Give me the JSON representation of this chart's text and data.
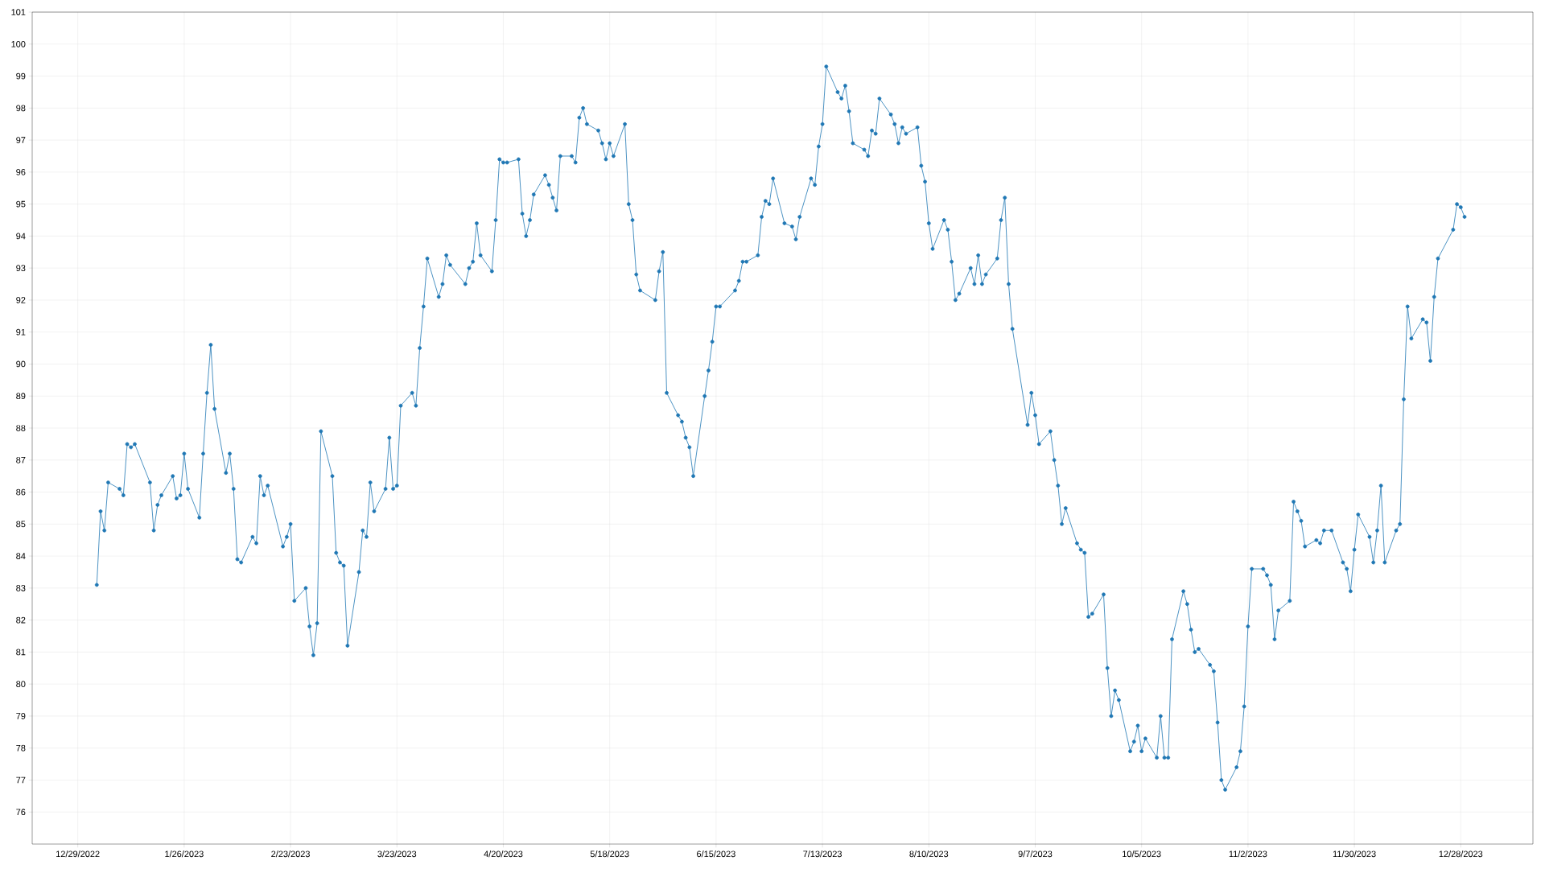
{
  "chart_data": {
    "type": "line",
    "color": "#1f77b4",
    "marker": "circle",
    "line_style": "solid",
    "grid": true,
    "xlim": [
      "2022-12-17",
      "2024-01-16"
    ],
    "ylim": [
      75,
      101
    ],
    "yticks": [
      76,
      77,
      78,
      79,
      80,
      81,
      82,
      83,
      84,
      85,
      86,
      87,
      88,
      89,
      90,
      91,
      92,
      93,
      94,
      95,
      96,
      97,
      98,
      99,
      100,
      101
    ],
    "xticks": [
      {
        "value": "2022-12-29",
        "label": "12/29/2022"
      },
      {
        "value": "2023-01-26",
        "label": "1/26/2023"
      },
      {
        "value": "2023-02-23",
        "label": "2/23/2023"
      },
      {
        "value": "2023-03-23",
        "label": "3/23/2023"
      },
      {
        "value": "2023-04-20",
        "label": "4/20/2023"
      },
      {
        "value": "2023-05-18",
        "label": "5/18/2023"
      },
      {
        "value": "2023-06-15",
        "label": "6/15/2023"
      },
      {
        "value": "2023-07-13",
        "label": "7/13/2023"
      },
      {
        "value": "2023-08-10",
        "label": "8/10/2023"
      },
      {
        "value": "2023-09-07",
        "label": "9/7/2023"
      },
      {
        "value": "2023-10-05",
        "label": "10/5/2023"
      },
      {
        "value": "2023-11-02",
        "label": "11/2/2023"
      },
      {
        "value": "2023-11-30",
        "label": "11/30/2023"
      },
      {
        "value": "2023-12-28",
        "label": "12/28/2023"
      }
    ],
    "x": [
      "2023-01-03",
      "2023-01-04",
      "2023-01-05",
      "2023-01-06",
      "2023-01-09",
      "2023-01-10",
      "2023-01-11",
      "2023-01-12",
      "2023-01-13",
      "2023-01-17",
      "2023-01-18",
      "2023-01-19",
      "2023-01-20",
      "2023-01-23",
      "2023-01-24",
      "2023-01-25",
      "2023-01-26",
      "2023-01-27",
      "2023-01-30",
      "2023-01-31",
      "2023-02-01",
      "2023-02-02",
      "2023-02-03",
      "2023-02-06",
      "2023-02-07",
      "2023-02-08",
      "2023-02-09",
      "2023-02-10",
      "2023-02-13",
      "2023-02-14",
      "2023-02-15",
      "2023-02-16",
      "2023-02-17",
      "2023-02-21",
      "2023-02-22",
      "2023-02-23",
      "2023-02-24",
      "2023-02-27",
      "2023-02-28",
      "2023-03-01",
      "2023-03-02",
      "2023-03-03",
      "2023-03-06",
      "2023-03-07",
      "2023-03-08",
      "2023-03-09",
      "2023-03-10",
      "2023-03-13",
      "2023-03-14",
      "2023-03-15",
      "2023-03-16",
      "2023-03-17",
      "2023-03-20",
      "2023-03-21",
      "2023-03-22",
      "2023-03-23",
      "2023-03-24",
      "2023-03-27",
      "2023-03-28",
      "2023-03-29",
      "2023-03-30",
      "2023-03-31",
      "2023-04-03",
      "2023-04-04",
      "2023-04-05",
      "2023-04-06",
      "2023-04-10",
      "2023-04-11",
      "2023-04-12",
      "2023-04-13",
      "2023-04-14",
      "2023-04-17",
      "2023-04-18",
      "2023-04-19",
      "2023-04-20",
      "2023-04-21",
      "2023-04-24",
      "2023-04-25",
      "2023-04-26",
      "2023-04-27",
      "2023-04-28",
      "2023-05-01",
      "2023-05-02",
      "2023-05-03",
      "2023-05-04",
      "2023-05-05",
      "2023-05-08",
      "2023-05-09",
      "2023-05-10",
      "2023-05-11",
      "2023-05-12",
      "2023-05-15",
      "2023-05-16",
      "2023-05-17",
      "2023-05-18",
      "2023-05-19",
      "2023-05-22",
      "2023-05-23",
      "2023-05-24",
      "2023-05-25",
      "2023-05-26",
      "2023-05-30",
      "2023-05-31",
      "2023-06-01",
      "2023-06-02",
      "2023-06-05",
      "2023-06-06",
      "2023-06-07",
      "2023-06-08",
      "2023-06-09",
      "2023-06-12",
      "2023-06-13",
      "2023-06-14",
      "2023-06-15",
      "2023-06-16",
      "2023-06-20",
      "2023-06-21",
      "2023-06-22",
      "2023-06-23",
      "2023-06-26",
      "2023-06-27",
      "2023-06-28",
      "2023-06-29",
      "2023-06-30",
      "2023-07-03",
      "2023-07-05",
      "2023-07-06",
      "2023-07-07",
      "2023-07-10",
      "2023-07-11",
      "2023-07-12",
      "2023-07-13",
      "2023-07-14",
      "2023-07-17",
      "2023-07-18",
      "2023-07-19",
      "2023-07-20",
      "2023-07-21",
      "2023-07-24",
      "2023-07-25",
      "2023-07-26",
      "2023-07-27",
      "2023-07-28",
      "2023-07-31",
      "2023-08-01",
      "2023-08-02",
      "2023-08-03",
      "2023-08-04",
      "2023-08-07",
      "2023-08-08",
      "2023-08-09",
      "2023-08-10",
      "2023-08-11",
      "2023-08-14",
      "2023-08-15",
      "2023-08-16",
      "2023-08-17",
      "2023-08-18",
      "2023-08-21",
      "2023-08-22",
      "2023-08-23",
      "2023-08-24",
      "2023-08-25",
      "2023-08-28",
      "2023-08-29",
      "2023-08-30",
      "2023-08-31",
      "2023-09-01",
      "2023-09-05",
      "2023-09-06",
      "2023-09-07",
      "2023-09-08",
      "2023-09-11",
      "2023-09-12",
      "2023-09-13",
      "2023-09-14",
      "2023-09-15",
      "2023-09-18",
      "2023-09-19",
      "2023-09-20",
      "2023-09-21",
      "2023-09-22",
      "2023-09-25",
      "2023-09-26",
      "2023-09-27",
      "2023-09-28",
      "2023-09-29",
      "2023-10-02",
      "2023-10-03",
      "2023-10-04",
      "2023-10-05",
      "2023-10-06",
      "2023-10-09",
      "2023-10-10",
      "2023-10-11",
      "2023-10-12",
      "2023-10-13",
      "2023-10-16",
      "2023-10-17",
      "2023-10-18",
      "2023-10-19",
      "2023-10-20",
      "2023-10-23",
      "2023-10-24",
      "2023-10-25",
      "2023-10-26",
      "2023-10-27",
      "2023-10-30",
      "2023-10-31",
      "2023-11-01",
      "2023-11-02",
      "2023-11-03",
      "2023-11-06",
      "2023-11-07",
      "2023-11-08",
      "2023-11-09",
      "2023-11-10",
      "2023-11-13",
      "2023-11-14",
      "2023-11-15",
      "2023-11-16",
      "2023-11-17",
      "2023-11-20",
      "2023-11-21",
      "2023-11-22",
      "2023-11-24",
      "2023-11-27",
      "2023-11-28",
      "2023-11-29",
      "2023-11-30",
      "2023-12-01",
      "2023-12-04",
      "2023-12-05",
      "2023-12-06",
      "2023-12-07",
      "2023-12-08",
      "2023-12-11",
      "2023-12-12",
      "2023-12-13",
      "2023-12-14",
      "2023-12-15",
      "2023-12-18",
      "2023-12-19",
      "2023-12-20",
      "2023-12-21",
      "2023-12-22",
      "2023-12-26",
      "2023-12-27",
      "2023-12-28",
      "2023-12-29"
    ],
    "values": [
      83.1,
      85.4,
      84.8,
      86.3,
      86.1,
      85.9,
      87.5,
      87.4,
      87.5,
      86.3,
      84.8,
      85.6,
      85.9,
      86.5,
      85.8,
      85.9,
      87.2,
      86.1,
      85.2,
      87.2,
      89.1,
      90.6,
      88.6,
      86.6,
      87.2,
      86.1,
      83.9,
      83.8,
      84.6,
      84.4,
      86.5,
      85.9,
      86.2,
      84.3,
      84.6,
      85.0,
      82.6,
      83.0,
      81.8,
      80.9,
      81.9,
      87.9,
      86.5,
      84.1,
      83.8,
      83.7,
      81.2,
      83.5,
      84.8,
      84.6,
      86.3,
      85.4,
      86.1,
      87.7,
      86.1,
      86.2,
      88.7,
      89.1,
      88.7,
      90.5,
      91.8,
      93.3,
      92.1,
      92.5,
      93.4,
      93.1,
      92.5,
      93.0,
      93.2,
      94.4,
      93.4,
      92.9,
      94.5,
      96.4,
      96.3,
      96.3,
      96.4,
      94.7,
      94.0,
      94.5,
      95.3,
      95.9,
      95.6,
      95.2,
      94.8,
      96.5,
      96.5,
      96.3,
      97.7,
      98.0,
      97.5,
      97.3,
      96.9,
      96.4,
      96.9,
      96.5,
      97.5,
      95.0,
      94.5,
      92.8,
      92.3,
      92.0,
      92.9,
      93.5,
      89.1,
      88.4,
      88.2,
      87.7,
      87.4,
      86.5,
      89.0,
      89.8,
      90.7,
      91.8,
      91.8,
      92.3,
      92.6,
      93.2,
      93.2,
      93.4,
      94.6,
      95.1,
      95.0,
      95.8,
      94.4,
      94.3,
      93.9,
      94.6,
      95.8,
      95.6,
      96.8,
      97.5,
      99.3,
      98.5,
      98.3,
      98.7,
      97.9,
      96.9,
      96.7,
      96.5,
      97.3,
      97.2,
      98.3,
      97.8,
      97.5,
      96.9,
      97.4,
      97.2,
      97.4,
      96.2,
      95.7,
      94.4,
      93.6,
      94.5,
      94.2,
      93.2,
      92.0,
      92.2,
      93.0,
      92.5,
      93.4,
      92.5,
      92.8,
      93.3,
      94.5,
      95.2,
      92.5,
      91.1,
      88.1,
      89.1,
      88.4,
      87.5,
      87.9,
      87.0,
      86.2,
      85.0,
      85.5,
      84.4,
      84.2,
      84.1,
      82.1,
      82.2,
      82.8,
      80.5,
      79.0,
      79.8,
      79.5,
      77.9,
      78.2,
      78.7,
      77.9,
      78.3,
      77.7,
      79.0,
      77.7,
      77.7,
      81.4,
      82.9,
      82.5,
      81.7,
      81.0,
      81.1,
      80.6,
      80.4,
      78.8,
      77.0,
      76.7,
      77.4,
      77.9,
      79.3,
      81.8,
      83.6,
      83.6,
      83.4,
      83.1,
      81.4,
      82.3,
      82.6,
      85.7,
      85.4,
      85.1,
      84.3,
      84.5,
      84.4,
      84.8,
      84.8,
      83.8,
      83.6,
      82.9,
      84.2,
      85.3,
      84.6,
      83.8,
      84.8,
      86.2,
      83.8,
      84.8,
      85.0,
      88.9,
      91.8,
      90.8,
      91.4,
      91.3,
      90.1,
      92.1,
      93.3,
      94.2,
      95.0,
      94.9,
      94.6
    ]
  }
}
